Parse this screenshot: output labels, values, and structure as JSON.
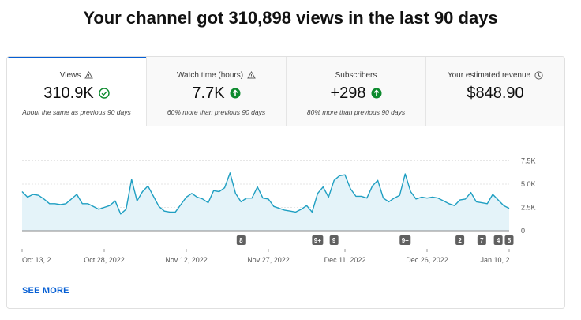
{
  "headline": "Your channel got 310,898 views in the last 90 days",
  "tabs": [
    {
      "title": "Views",
      "title_icon": "warning-triangle-icon",
      "value": "310.9K",
      "value_icon": "check-circle-icon",
      "note": "About the same as previous 90 days",
      "active": true
    },
    {
      "title": "Watch time (hours)",
      "title_icon": "warning-triangle-icon",
      "value": "7.7K",
      "value_icon": "arrow-up-circle-icon",
      "note": "60% more than previous 90 days",
      "active": false
    },
    {
      "title": "Subscribers",
      "value": "+298",
      "value_icon": "arrow-up-circle-icon",
      "note": "80% more than previous 90 days",
      "active": false
    },
    {
      "title": "Your estimated revenue",
      "title_icon": "clock-icon",
      "value": "$848.90",
      "note": "",
      "active": false
    }
  ],
  "colors": {
    "accent": "#065fd4",
    "line": "#1f9fc2",
    "fill": "#e4f3f9",
    "positive": "#0c8a2d"
  },
  "chart_data": {
    "type": "area",
    "y_ticks": [
      {
        "value": 7500,
        "label": "7.5K"
      },
      {
        "value": 5000,
        "label": "5.0K"
      },
      {
        "value": 2500,
        "label": "2.5K"
      },
      {
        "value": 0,
        "label": "0"
      }
    ],
    "ylim": [
      0,
      7800
    ],
    "x_ticks": [
      {
        "index": 0,
        "label": "Oct 13, 2..."
      },
      {
        "index": 15,
        "label": "Oct 28, 2022"
      },
      {
        "index": 30,
        "label": "Nov 12, 2022"
      },
      {
        "index": 45,
        "label": "Nov 27, 2022"
      },
      {
        "index": 59,
        "label": "Dec 11, 2022"
      },
      {
        "index": 74,
        "label": "Dec 26, 2022"
      },
      {
        "index": 89,
        "label": "Jan 10, 2..."
      }
    ],
    "values": [
      4200,
      3600,
      3900,
      3800,
      3400,
      2900,
      2900,
      2800,
      2900,
      3400,
      3900,
      2900,
      2900,
      2600,
      2300,
      2500,
      2700,
      3200,
      1800,
      2300,
      5500,
      3200,
      4200,
      4800,
      3700,
      2600,
      2100,
      2000,
      2000,
      2800,
      3600,
      4000,
      3600,
      3400,
      3000,
      4300,
      4200,
      4600,
      6200,
      4000,
      3100,
      3500,
      3500,
      4700,
      3500,
      3400,
      2600,
      2400,
      2200,
      2100,
      2000,
      2300,
      2700,
      2000,
      4000,
      4700,
      3600,
      5400,
      5900,
      6000,
      4500,
      3700,
      3700,
      3500,
      4800,
      5400,
      3500,
      3100,
      3500,
      3800,
      6100,
      4200,
      3400,
      3600,
      3500,
      3600,
      3500,
      3200,
      2900,
      2700,
      3300,
      3400,
      4100,
      3100,
      3000,
      2900,
      3900,
      3300,
      2700,
      2400
    ],
    "annotations": [
      {
        "index": 40,
        "label": "8"
      },
      {
        "index": 54,
        "label": "9+"
      },
      {
        "index": 57,
        "label": "9"
      },
      {
        "index": 70,
        "label": "9+"
      },
      {
        "index": 80,
        "label": "2"
      },
      {
        "index": 84,
        "label": "7"
      },
      {
        "index": 87,
        "label": "4"
      },
      {
        "index": 89,
        "label": "5"
      }
    ]
  },
  "see_more": "SEE MORE"
}
